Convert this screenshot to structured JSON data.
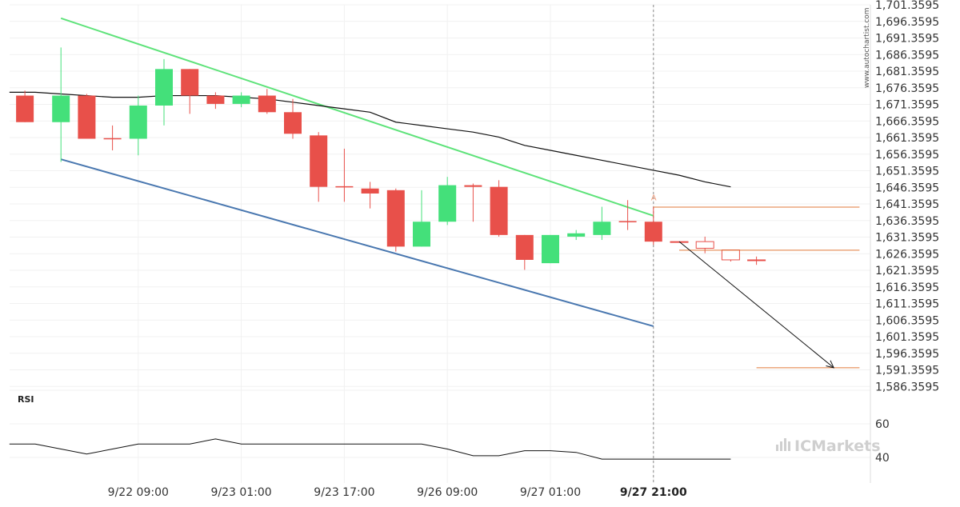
{
  "watermark": "www.autochartist.com",
  "brand": "ICMarkets",
  "rsi_panel_title": "RSI",
  "chart_data": {
    "type": "candlestick",
    "y_ticks": [
      "1,701.3595",
      "1,696.3595",
      "1,691.3595",
      "1,686.3595",
      "1,681.3595",
      "1,676.3595",
      "1,671.3595",
      "1,666.3595",
      "1,661.3595",
      "1,656.3595",
      "1,651.3595",
      "1,646.3595",
      "1,641.3595",
      "1,636.3595",
      "1,631.3595",
      "1,626.3595",
      "1,621.3595",
      "1,616.3595",
      "1,611.3595",
      "1,606.3595",
      "1,601.3595",
      "1,596.3595",
      "1,591.3595",
      "1,586.3595"
    ],
    "x_ticks": [
      {
        "index": 4,
        "label": "9/22 09:00",
        "bold": false
      },
      {
        "index": 8,
        "label": "9/23 01:00",
        "bold": false
      },
      {
        "index": 12,
        "label": "9/23 17:00",
        "bold": false
      },
      {
        "index": 16,
        "label": "9/26 09:00",
        "bold": false
      },
      {
        "index": 20,
        "label": "9/27 01:00",
        "bold": false
      },
      {
        "index": 24,
        "label": "9/27 21:00",
        "bold": true
      }
    ],
    "candles": [
      {
        "i": -0.4,
        "o": 1674.0,
        "h": 1675.5,
        "l": 1666.0,
        "c": 1666.0,
        "dir": "down"
      },
      {
        "i": 1,
        "o": 1666.0,
        "h": 1688.5,
        "l": 1654.0,
        "c": 1674.0,
        "dir": "up"
      },
      {
        "i": 2,
        "o": 1674.0,
        "h": 1674.5,
        "l": 1661.0,
        "c": 1661.0,
        "dir": "down"
      },
      {
        "i": 3,
        "o": 1661.0,
        "h": 1665.0,
        "l": 1657.5,
        "c": 1661.0,
        "dir": "doji"
      },
      {
        "i": 4,
        "o": 1661.0,
        "h": 1674.0,
        "l": 1656.0,
        "c": 1671.0,
        "dir": "up"
      },
      {
        "i": 5,
        "o": 1671.0,
        "h": 1685.0,
        "l": 1665.0,
        "c": 1682.0,
        "dir": "up"
      },
      {
        "i": 6,
        "o": 1682.0,
        "h": 1682.0,
        "l": 1668.5,
        "c": 1674.0,
        "dir": "down"
      },
      {
        "i": 7,
        "o": 1674.0,
        "h": 1675.0,
        "l": 1670.0,
        "c": 1671.5,
        "dir": "down"
      },
      {
        "i": 8,
        "o": 1671.5,
        "h": 1675.0,
        "l": 1670.5,
        "c": 1674.0,
        "dir": "up"
      },
      {
        "i": 9,
        "o": 1674.0,
        "h": 1676.0,
        "l": 1668.5,
        "c": 1669.0,
        "dir": "down"
      },
      {
        "i": 10,
        "o": 1669.0,
        "h": 1673.0,
        "l": 1661.0,
        "c": 1662.5,
        "dir": "down"
      },
      {
        "i": 11,
        "o": 1662.0,
        "h": 1663.0,
        "l": 1642.0,
        "c": 1646.5,
        "dir": "down"
      },
      {
        "i": 12,
        "o": 1646.5,
        "h": 1658.0,
        "l": 1642.0,
        "c": 1646.5,
        "dir": "doji"
      },
      {
        "i": 13,
        "o": 1646.0,
        "h": 1648.0,
        "l": 1640.0,
        "c": 1644.5,
        "dir": "down"
      },
      {
        "i": 14,
        "o": 1645.5,
        "h": 1646.0,
        "l": 1627.0,
        "c": 1628.5,
        "dir": "down"
      },
      {
        "i": 15,
        "o": 1628.5,
        "h": 1645.5,
        "l": 1628.5,
        "c": 1636.0,
        "dir": "up"
      },
      {
        "i": 16,
        "o": 1636.0,
        "h": 1649.5,
        "l": 1635.0,
        "c": 1647.0,
        "dir": "up"
      },
      {
        "i": 17,
        "o": 1647.0,
        "h": 1647.5,
        "l": 1636.0,
        "c": 1646.5,
        "dir": "down"
      },
      {
        "i": 18,
        "o": 1646.5,
        "h": 1648.5,
        "l": 1631.5,
        "c": 1632.0,
        "dir": "down"
      },
      {
        "i": 19,
        "o": 1632.0,
        "h": 1632.0,
        "l": 1621.5,
        "c": 1624.5,
        "dir": "down"
      },
      {
        "i": 20,
        "o": 1623.5,
        "h": 1632.0,
        "l": 1623.5,
        "c": 1632.0,
        "dir": "up"
      },
      {
        "i": 21,
        "o": 1631.5,
        "h": 1633.5,
        "l": 1630.5,
        "c": 1632.5,
        "dir": "up"
      },
      {
        "i": 22,
        "o": 1632.0,
        "h": 1640.5,
        "l": 1630.5,
        "c": 1636.0,
        "dir": "up"
      },
      {
        "i": 23,
        "o": 1636.0,
        "h": 1642.5,
        "l": 1633.5,
        "c": 1636.0,
        "dir": "doji"
      },
      {
        "i": 24,
        "o": 1636.0,
        "h": 1640.5,
        "l": 1629.0,
        "c": 1630.0,
        "dir": "down"
      },
      {
        "i": 25,
        "o": 1630.0,
        "h": 1630.0,
        "l": 1630.0,
        "c": 1630.0,
        "dir": "hollow"
      },
      {
        "i": 26,
        "o": 1630.0,
        "h": 1631.5,
        "l": 1626.5,
        "c": 1628.0,
        "dir": "hollow"
      },
      {
        "i": 27,
        "o": 1627.5,
        "h": 1627.5,
        "l": 1624.0,
        "c": 1624.5,
        "dir": "hollow"
      },
      {
        "i": 28,
        "o": 1624.5,
        "h": 1625.5,
        "l": 1623.0,
        "c": 1624.5,
        "dir": "hollow"
      }
    ],
    "moving_average": [
      {
        "i": -1.0,
        "v": 1675.0
      },
      {
        "i": 0,
        "v": 1675.0
      },
      {
        "i": 1,
        "v": 1674.5
      },
      {
        "i": 2,
        "v": 1674.0
      },
      {
        "i": 3,
        "v": 1673.5
      },
      {
        "i": 4,
        "v": 1673.5
      },
      {
        "i": 5,
        "v": 1674.0
      },
      {
        "i": 6,
        "v": 1674.0
      },
      {
        "i": 7,
        "v": 1674.0
      },
      {
        "i": 8,
        "v": 1673.5
      },
      {
        "i": 9,
        "v": 1673.0
      },
      {
        "i": 10,
        "v": 1672.0
      },
      {
        "i": 11,
        "v": 1671.0
      },
      {
        "i": 12,
        "v": 1670.0
      },
      {
        "i": 13,
        "v": 1669.0
      },
      {
        "i": 14,
        "v": 1666.0
      },
      {
        "i": 15,
        "v": 1665.0
      },
      {
        "i": 16,
        "v": 1664.0
      },
      {
        "i": 17,
        "v": 1663.0
      },
      {
        "i": 18,
        "v": 1661.5
      },
      {
        "i": 19,
        "v": 1659.0
      },
      {
        "i": 20,
        "v": 1657.5
      },
      {
        "i": 21,
        "v": 1656.0
      },
      {
        "i": 22,
        "v": 1654.5
      },
      {
        "i": 23,
        "v": 1653.0
      },
      {
        "i": 24,
        "v": 1651.5
      },
      {
        "i": 25,
        "v": 1650.0
      },
      {
        "i": 26,
        "v": 1648.0
      },
      {
        "i": 27,
        "v": 1646.5
      }
    ],
    "channel_top": {
      "i1": 1,
      "v1": 1697.3,
      "i2": 24,
      "v2": 1637.8
    },
    "channel_bottom": {
      "i1": 1,
      "v1": 1654.8,
      "i2": 24,
      "v2": 1604.5
    },
    "channel_top_color": "#5ee37a",
    "channel_bottom_color": "#4a78b0",
    "breakout_marker": {
      "i": 24,
      "v": 1641.5,
      "label": "A"
    },
    "breakout_time_index": 24,
    "levels": [
      {
        "i1": 24,
        "i2": 32,
        "v": 1640.4
      },
      {
        "i1": 25,
        "i2": 32,
        "v": 1627.4
      },
      {
        "i1": 28,
        "i2": 32,
        "v": 1592.0
      }
    ],
    "forecast_arrow": {
      "i1": 25,
      "v1": 1630.0,
      "i2": 31,
      "v2": 1592.0
    },
    "rsi": {
      "ticks": [
        "60",
        "40"
      ],
      "values": [
        {
          "i": -1.0,
          "v": 48
        },
        {
          "i": 0,
          "v": 48
        },
        {
          "i": 1,
          "v": 45
        },
        {
          "i": 2,
          "v": 42
        },
        {
          "i": 3,
          "v": 45
        },
        {
          "i": 4,
          "v": 48
        },
        {
          "i": 5,
          "v": 48
        },
        {
          "i": 6,
          "v": 48
        },
        {
          "i": 7,
          "v": 51
        },
        {
          "i": 8,
          "v": 48
        },
        {
          "i": 9,
          "v": 48
        },
        {
          "i": 10,
          "v": 48
        },
        {
          "i": 11,
          "v": 48
        },
        {
          "i": 12,
          "v": 48
        },
        {
          "i": 13,
          "v": 48
        },
        {
          "i": 14,
          "v": 48
        },
        {
          "i": 15,
          "v": 48
        },
        {
          "i": 16,
          "v": 45
        },
        {
          "i": 17,
          "v": 41
        },
        {
          "i": 18,
          "v": 41
        },
        {
          "i": 19,
          "v": 44
        },
        {
          "i": 20,
          "v": 44
        },
        {
          "i": 21,
          "v": 43
        },
        {
          "i": 22,
          "v": 39
        },
        {
          "i": 23,
          "v": 39
        },
        {
          "i": 24,
          "v": 39
        },
        {
          "i": 25,
          "v": 39
        },
        {
          "i": 26,
          "v": 39
        },
        {
          "i": 27,
          "v": 39
        }
      ]
    },
    "colors": {
      "up": "#44e07a",
      "down": "#e8504a",
      "hollow": "#e8504a",
      "ma": "#111111",
      "level": "#e07a3a",
      "marker": "#f0a080"
    }
  }
}
